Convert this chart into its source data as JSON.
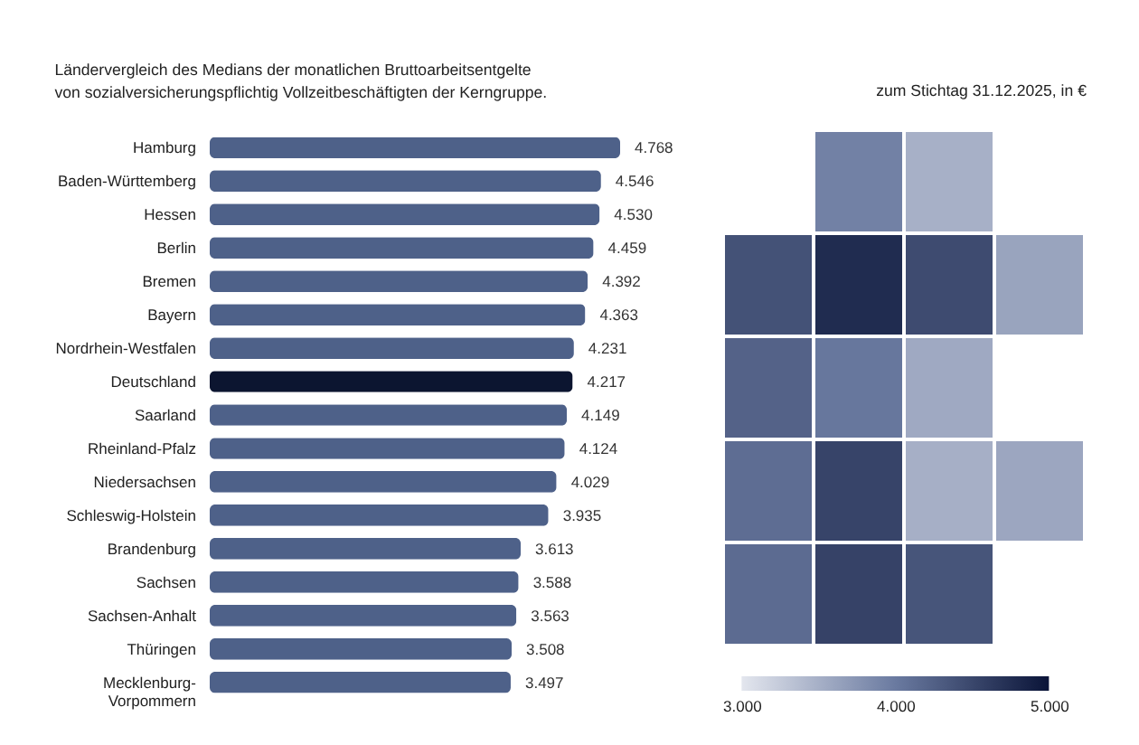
{
  "chart_data": [
    {
      "type": "bar",
      "orientation": "horizontal",
      "subtitle": "Ländervergleich des Medians der monatlichen Bruttoarbeitsentgelte\nvon sozialversicherungspflichtig Vollzeitbeschäftigten der Kerngruppe.",
      "annotations": [
        "zum Stichtag 31.12.2025, in €"
      ],
      "categories": [
        "Hamburg",
        "Baden-Württemberg",
        "Hessen",
        "Berlin",
        "Bremen",
        "Bayern",
        "Nordrhein-Westfalen",
        "Deutschland",
        "Saarland",
        "Rheinland-Pfalz",
        "Niedersachsen",
        "Schleswig-Holstein",
        "Brandenburg",
        "Sachsen",
        "Sachsen-Anhalt",
        "Thüringen",
        "Mecklenburg-\nVorpommern"
      ],
      "values": [
        4768,
        4546,
        4530,
        4459,
        4392,
        4363,
        4231,
        4217,
        4149,
        4124,
        4029,
        3935,
        3613,
        3588,
        3563,
        3508,
        3497
      ],
      "value_labels": [
        "4.768",
        "4.546",
        "4.530",
        "4.459",
        "4.392",
        "4.363",
        "4.231",
        "4.217",
        "4.149",
        "4.124",
        "4.029",
        "3.935",
        "3.613",
        "3.588",
        "3.563",
        "3.508",
        "3.497"
      ],
      "colors": [
        "#4e6189",
        "#4e6189",
        "#4e6189",
        "#4e6189",
        "#4e6189",
        "#4e6189",
        "#4e6189",
        "#0c1530",
        "#4e6189",
        "#4e6189",
        "#4e6189",
        "#4e6189",
        "#4e6189",
        "#4e6189",
        "#4e6189",
        "#4e6189",
        "#4e6189"
      ],
      "tick_labels": "y"
    },
    {
      "type": "heatmap",
      "categories": [
        null,
        null,
        null,
        null
      ],
      "y_categories": [
        null,
        null,
        null,
        null,
        null
      ],
      "cells": [
        [
          null,
          3935,
          3497,
          null
        ],
        [
          4392,
          4768,
          4459,
          3613
        ],
        [
          4231,
          4029,
          3563,
          null
        ],
        [
          4124,
          4530,
          3508,
          3588
        ],
        [
          4149,
          4546,
          4363,
          null
        ]
      ],
      "clim": [
        3000,
        5000
      ],
      "cticks": [
        {
          "value": 3000,
          "label": "3.000"
        },
        {
          "value": 4000,
          "label": "4.000"
        },
        {
          "value": 5000,
          "label": "5.000"
        }
      ],
      "tick_labels": false
    }
  ]
}
